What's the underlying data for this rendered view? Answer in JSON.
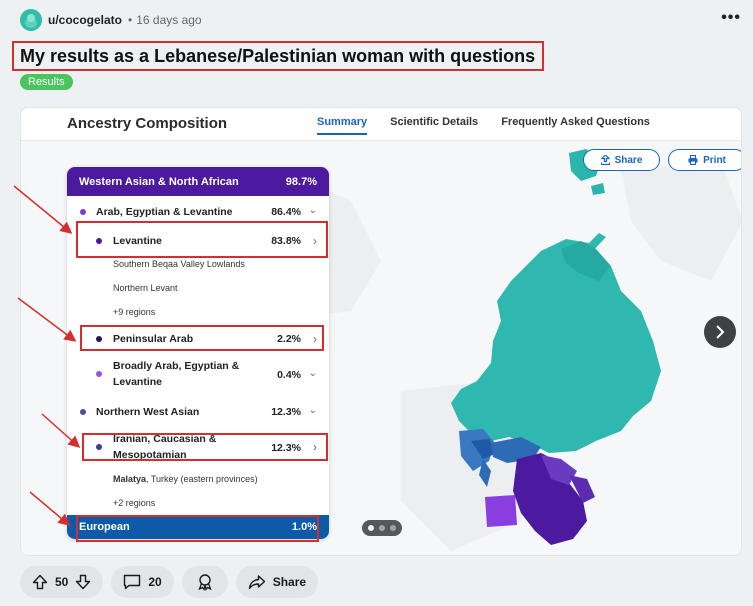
{
  "post": {
    "username": "u/cocogelato",
    "separator": "•",
    "time_ago": "16 days ago",
    "more_icon": "ellipsis-icon",
    "title": "My results as a Lebanese/Palestinian woman with questions",
    "flair": "Results"
  },
  "app": {
    "title": "Ancestry Composition",
    "tabs": [
      {
        "label": "Summary",
        "active": true
      },
      {
        "label": "Scientific Details",
        "active": false
      },
      {
        "label": "Frequently Asked Questions",
        "active": false
      }
    ],
    "share_label": "Share",
    "print_label": "Print"
  },
  "panel": {
    "header": {
      "label": "Western Asian & North African",
      "pct": "98.7%"
    },
    "rows": [
      {
        "label": "Arab, Egyptian & Levantine",
        "pct": "86.4%",
        "chev": "⌄"
      },
      {
        "label": "Levantine",
        "pct": "83.8%",
        "chev": "›"
      },
      {
        "label": "Peninsular Arab",
        "pct": "2.2%",
        "chev": "›"
      },
      {
        "label": "Broadly Arab, Egyptian &",
        "label2": "Levantine",
        "pct": "0.4%",
        "chev": "⌄"
      },
      {
        "label": "Northern West Asian",
        "pct": "12.3%",
        "chev": "⌄"
      },
      {
        "label": "Iranian, Caucasian &",
        "label2": "Mesopotamian",
        "pct": "12.3%",
        "chev": "›"
      }
    ],
    "subs": {
      "levantine_1": "Southern Beqaa Valley Lowlands",
      "levantine_2": "Northern Levant",
      "levantine_more": "+9 regions",
      "iranian_1_bold": "Malatya",
      "iranian_1_rest": ", Turkey (eastern provinces)",
      "iranian_more": "+2 regions"
    },
    "footer": {
      "label": "European",
      "pct": "1.0%"
    }
  },
  "colors": {
    "header_purple": "#4b1a9e",
    "european_blue": "#0d5aa8",
    "annotation_red": "#d42f2f",
    "flair_green": "#4bc35e",
    "tab_active": "#1a63c5"
  },
  "actions": {
    "upvotes": "50",
    "comments": "20",
    "share_label": "Share"
  }
}
